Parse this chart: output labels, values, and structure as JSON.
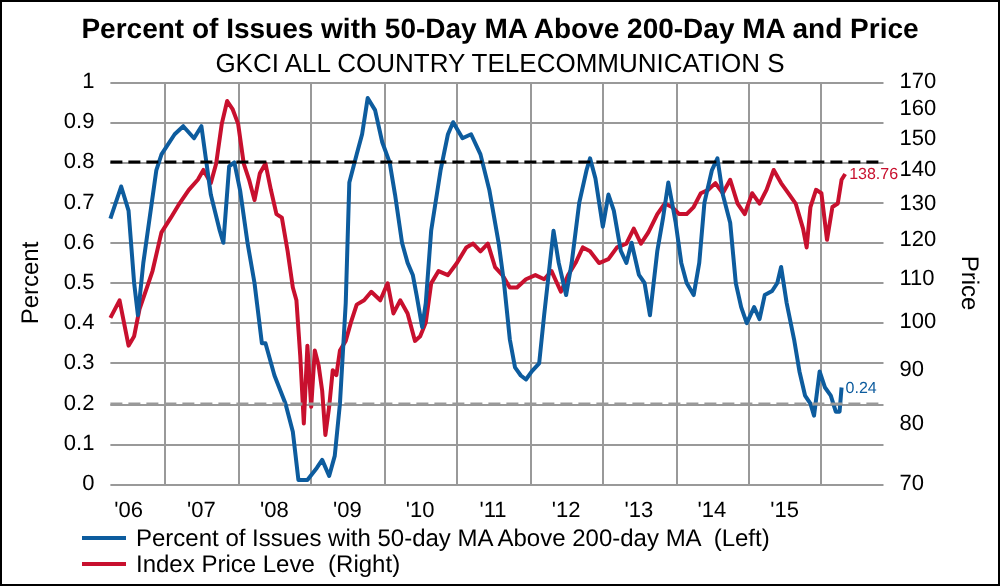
{
  "chart_data": {
    "type": "line",
    "title": "Percent of Issues with 50-Day MA Above 200-Day MA and Price",
    "subtitle": "GKCI ALL COUNTRY TELECOMMUNICATION S",
    "ylabel": "Percent",
    "y2label": "Price",
    "xlim": [
      "2006-04-01",
      "2016-11-07"
    ],
    "xticks": [
      {
        "value": "2006-07-01",
        "label": "'06"
      },
      {
        "value": "2007-01-01",
        "label": null
      },
      {
        "value": "2007-07-01",
        "label": "'07"
      },
      {
        "value": "2008-01-01",
        "label": null
      },
      {
        "value": "2008-07-01",
        "label": "'08"
      },
      {
        "value": "2009-01-01",
        "label": null
      },
      {
        "value": "2009-07-01",
        "label": "'09"
      },
      {
        "value": "2010-01-01",
        "label": null
      },
      {
        "value": "2010-07-01",
        "label": "'10"
      },
      {
        "value": "2011-01-01",
        "label": null
      },
      {
        "value": "2011-07-01",
        "label": "'11"
      },
      {
        "value": "2012-01-01",
        "label": null
      },
      {
        "value": "2012-07-01",
        "label": "'12"
      },
      {
        "value": "2013-01-01",
        "label": null
      },
      {
        "value": "2013-07-01",
        "label": "'13"
      },
      {
        "value": "2014-01-01",
        "label": null
      },
      {
        "value": "2014-07-01",
        "label": "'14"
      },
      {
        "value": "2015-01-01",
        "label": null
      },
      {
        "value": "2015-07-01",
        "label": "'15"
      },
      {
        "value": "2016-01-01",
        "label": null
      }
    ],
    "ylim": [
      0,
      1
    ],
    "yticks": [
      0,
      0.1,
      0.2,
      0.3,
      0.4,
      0.5,
      0.6,
      0.7,
      0.8,
      0.9,
      1
    ],
    "y2lim": [
      70,
      170
    ],
    "y2ticks": [
      70,
      80,
      90,
      100,
      110,
      120,
      130,
      140,
      150,
      160,
      170
    ],
    "log": "y2",
    "grid": true,
    "legend": "bottom",
    "marker": "none",
    "line_style": "solid",
    "ref_lines": [
      {
        "axis": "y",
        "value": 0.8,
        "color": "#000000",
        "line_style": "dashed"
      },
      {
        "axis": "y",
        "value": 0.2,
        "color": "#999999",
        "line_style": "dashed"
      }
    ],
    "series": [
      {
        "name": "Percent of Issues with 50-day MA Above 200-day MA  (Left)",
        "color": "#0d5c9e",
        "x": [
          "2006-04-01",
          "2006-05-25",
          "2006-07-01",
          "2006-07-29",
          "2006-08-17",
          "2006-09-13",
          "2006-11-17",
          "2006-12-13",
          "2007-02-17",
          "2007-04-01",
          "2007-05-25",
          "2007-07-01",
          "2007-08-17",
          "2007-10-01",
          "2007-10-19",
          "2007-11-17",
          "2007-12-13",
          "2008-01-11",
          "2008-02-17",
          "2008-03-23",
          "2008-04-29",
          "2008-05-17",
          "2008-07-01",
          "2008-08-25",
          "2008-10-01",
          "2008-10-29",
          "2008-12-13",
          "2009-01-29",
          "2009-02-25",
          "2009-04-01",
          "2009-04-29",
          "2009-05-25",
          "2009-06-23",
          "2009-07-11",
          "2009-08-17",
          "2009-09-13",
          "2009-10-11",
          "2009-11-17",
          "2009-12-23",
          "2010-01-29",
          "2010-02-25",
          "2010-04-01",
          "2010-04-29",
          "2010-05-25",
          "2010-06-13",
          "2010-07-11",
          "2010-07-29",
          "2010-08-25",
          "2010-10-11",
          "2010-11-17",
          "2010-12-13",
          "2011-01-29",
          "2011-03-13",
          "2011-04-29",
          "2011-06-13",
          "2011-07-29",
          "2011-08-25",
          "2011-09-23",
          "2011-10-19",
          "2011-11-17",
          "2011-12-13",
          "2012-01-11",
          "2012-02-17",
          "2012-03-13",
          "2012-04-11",
          "2012-04-29",
          "2012-05-25",
          "2012-07-01",
          "2012-07-29",
          "2012-09-05",
          "2012-10-11",
          "2012-10-29",
          "2012-11-25",
          "2013-01-01",
          "2013-01-29",
          "2013-02-25",
          "2013-04-01",
          "2013-04-29",
          "2013-05-25",
          "2013-07-01",
          "2013-07-29",
          "2013-08-25",
          "2013-10-01",
          "2013-10-29",
          "2013-11-25",
          "2014-01-01",
          "2014-01-29",
          "2014-02-25",
          "2014-04-01",
          "2014-04-29",
          "2014-05-25",
          "2014-07-01",
          "2014-07-29",
          "2014-08-25",
          "2014-10-01",
          "2014-10-29",
          "2014-11-25",
          "2014-12-23",
          "2015-01-29",
          "2015-02-25",
          "2015-03-23",
          "2015-04-29",
          "2015-05-25",
          "2015-06-13",
          "2015-07-11",
          "2015-08-17",
          "2015-09-13",
          "2015-10-11",
          "2015-11-07",
          "2015-11-25",
          "2015-12-23",
          "2016-01-19",
          "2016-02-17",
          "2016-03-13",
          "2016-04-01",
          "2016-04-11"
        ],
        "values": [
          0.66,
          0.74,
          0.68,
          0.5,
          0.42,
          0.55,
          0.78,
          0.82,
          0.87,
          0.89,
          0.86,
          0.89,
          0.72,
          0.63,
          0.6,
          0.79,
          0.8,
          0.73,
          0.6,
          0.5,
          0.35,
          0.35,
          0.27,
          0.2,
          0.13,
          0.01,
          0.01,
          0.04,
          0.06,
          0.02,
          0.07,
          0.2,
          0.45,
          0.75,
          0.82,
          0.87,
          0.96,
          0.93,
          0.85,
          0.8,
          0.72,
          0.6,
          0.55,
          0.52,
          0.47,
          0.39,
          0.45,
          0.63,
          0.78,
          0.87,
          0.9,
          0.86,
          0.87,
          0.82,
          0.73,
          0.6,
          0.5,
          0.36,
          0.29,
          0.27,
          0.26,
          0.28,
          0.3,
          0.42,
          0.55,
          0.63,
          0.55,
          0.47,
          0.55,
          0.7,
          0.78,
          0.81,
          0.76,
          0.64,
          0.72,
          0.68,
          0.58,
          0.55,
          0.6,
          0.52,
          0.5,
          0.42,
          0.58,
          0.66,
          0.75,
          0.65,
          0.55,
          0.5,
          0.47,
          0.55,
          0.7,
          0.78,
          0.81,
          0.72,
          0.65,
          0.5,
          0.44,
          0.4,
          0.44,
          0.41,
          0.47,
          0.48,
          0.5,
          0.54,
          0.45,
          0.36,
          0.28,
          0.22,
          0.2,
          0.17,
          0.28,
          0.24,
          0.22,
          0.18,
          0.18,
          0.24
        ],
        "value_labels": [
          null,
          null,
          null,
          null,
          null,
          null,
          null,
          null,
          null,
          null,
          null,
          null,
          null,
          null,
          null,
          null,
          null,
          null,
          null,
          null,
          null,
          null,
          null,
          null,
          null,
          null,
          null,
          null,
          null,
          null,
          null,
          null,
          null,
          null,
          null,
          null,
          null,
          null,
          null,
          null,
          null,
          null,
          null,
          null,
          null,
          null,
          null,
          null,
          null,
          null,
          null,
          null,
          null,
          null,
          null,
          null,
          null,
          null,
          null,
          null,
          null,
          null,
          null,
          null,
          null,
          null,
          null,
          null,
          null,
          null,
          null,
          null,
          null,
          null,
          null,
          null,
          null,
          null,
          null,
          null,
          null,
          null,
          null,
          null,
          null,
          null,
          null,
          null,
          null,
          null,
          null,
          null,
          null,
          null,
          null,
          null,
          null,
          null,
          null,
          null,
          null,
          null,
          null,
          null,
          null,
          null,
          null,
          null,
          null,
          null,
          null,
          null,
          null,
          null,
          null,
          "0.24"
        ]
      },
      {
        "name": "Index Price Leve  (Right)",
        "color": "#c8102e",
        "axis": "y2",
        "x": [
          "2006-04-01",
          "2006-05-17",
          "2006-07-01",
          "2006-07-29",
          "2006-08-25",
          "2006-10-01",
          "2006-10-29",
          "2006-12-13",
          "2007-01-29",
          "2007-03-13",
          "2007-04-29",
          "2007-06-13",
          "2007-07-11",
          "2007-08-17",
          "2007-09-13",
          "2007-10-11",
          "2007-11-07",
          "2007-12-05",
          "2008-01-01",
          "2008-01-29",
          "2008-02-25",
          "2008-03-23",
          "2008-04-19",
          "2008-05-17",
          "2008-06-13",
          "2008-07-11",
          "2008-08-07",
          "2008-09-05",
          "2008-10-01",
          "2008-10-19",
          "2008-11-07",
          "2008-11-25",
          "2008-12-13",
          "2009-01-01",
          "2009-01-19",
          "2009-02-07",
          "2009-02-25",
          "2009-03-13",
          "2009-04-01",
          "2009-04-19",
          "2009-05-07",
          "2009-05-25",
          "2009-06-23",
          "2009-07-19",
          "2009-08-17",
          "2009-09-23",
          "2009-10-29",
          "2009-12-13",
          "2010-01-19",
          "2010-02-17",
          "2010-03-23",
          "2010-04-29",
          "2010-06-05",
          "2010-07-01",
          "2010-07-29",
          "2010-08-25",
          "2010-10-01",
          "2010-11-17",
          "2011-01-01",
          "2011-02-17",
          "2011-03-23",
          "2011-04-29",
          "2011-06-05",
          "2011-07-11",
          "2011-08-17",
          "2011-09-23",
          "2011-10-29",
          "2011-12-13",
          "2012-01-29",
          "2012-03-13",
          "2012-04-19",
          "2012-06-05",
          "2012-07-11",
          "2012-08-17",
          "2012-09-23",
          "2012-10-29",
          "2012-12-13",
          "2013-01-29",
          "2013-03-13",
          "2013-04-29",
          "2013-06-05",
          "2013-07-11",
          "2013-08-17",
          "2013-10-01",
          "2013-11-07",
          "2013-12-13",
          "2014-01-19",
          "2014-02-25",
          "2014-04-01",
          "2014-05-07",
          "2014-06-13",
          "2014-07-19",
          "2014-08-25",
          "2014-10-01",
          "2014-11-07",
          "2014-12-13",
          "2015-01-19",
          "2015-02-25",
          "2015-04-01",
          "2015-05-07",
          "2015-06-13",
          "2015-07-19",
          "2015-08-25",
          "2015-10-01",
          "2015-10-19",
          "2015-11-07",
          "2015-12-05",
          "2016-01-01",
          "2016-01-29",
          "2016-02-25",
          "2016-03-23",
          "2016-04-11",
          "2016-04-29"
        ],
        "values": [
          101,
          105,
          95,
          97,
          103,
          108,
          112,
          122,
          126,
          130,
          134,
          137,
          140,
          136,
          142,
          155,
          163,
          160,
          155,
          142,
          137,
          131,
          139,
          142,
          134,
          127,
          126,
          117,
          108,
          105,
          93,
          80,
          95,
          83,
          94,
          91,
          86,
          78,
          83,
          90,
          89,
          94,
          96,
          100,
          104,
          105,
          107,
          105,
          109,
          102,
          105,
          102,
          96,
          97,
          100,
          109,
          112,
          111,
          114,
          118,
          119,
          117,
          119,
          113,
          111,
          108,
          108,
          110,
          111,
          110,
          112,
          107,
          111,
          114,
          118,
          117,
          114,
          115,
          118,
          119,
          123,
          119,
          122,
          127,
          130,
          129,
          127,
          127,
          129,
          133,
          134,
          136,
          133,
          137,
          130,
          127,
          133,
          130,
          134,
          140,
          136,
          133,
          130,
          123,
          118,
          129,
          134,
          133,
          120,
          129,
          130,
          137,
          138.76
        ],
        "value_labels": [
          null,
          null,
          null,
          null,
          null,
          null,
          null,
          null,
          null,
          null,
          null,
          null,
          null,
          null,
          null,
          null,
          null,
          null,
          null,
          null,
          null,
          null,
          null,
          null,
          null,
          null,
          null,
          null,
          null,
          null,
          null,
          null,
          null,
          null,
          null,
          null,
          null,
          null,
          null,
          null,
          null,
          null,
          null,
          null,
          null,
          null,
          null,
          null,
          null,
          null,
          null,
          null,
          null,
          null,
          null,
          null,
          null,
          null,
          null,
          null,
          null,
          null,
          null,
          null,
          null,
          null,
          null,
          null,
          null,
          null,
          null,
          null,
          null,
          null,
          null,
          null,
          null,
          null,
          null,
          null,
          null,
          null,
          null,
          null,
          null,
          null,
          null,
          null,
          null,
          null,
          null,
          null,
          null,
          null,
          null,
          null,
          null,
          null,
          null,
          null,
          null,
          null,
          null,
          null,
          null,
          null,
          null,
          null,
          null,
          null,
          null,
          null,
          "138.76"
        ]
      }
    ]
  }
}
